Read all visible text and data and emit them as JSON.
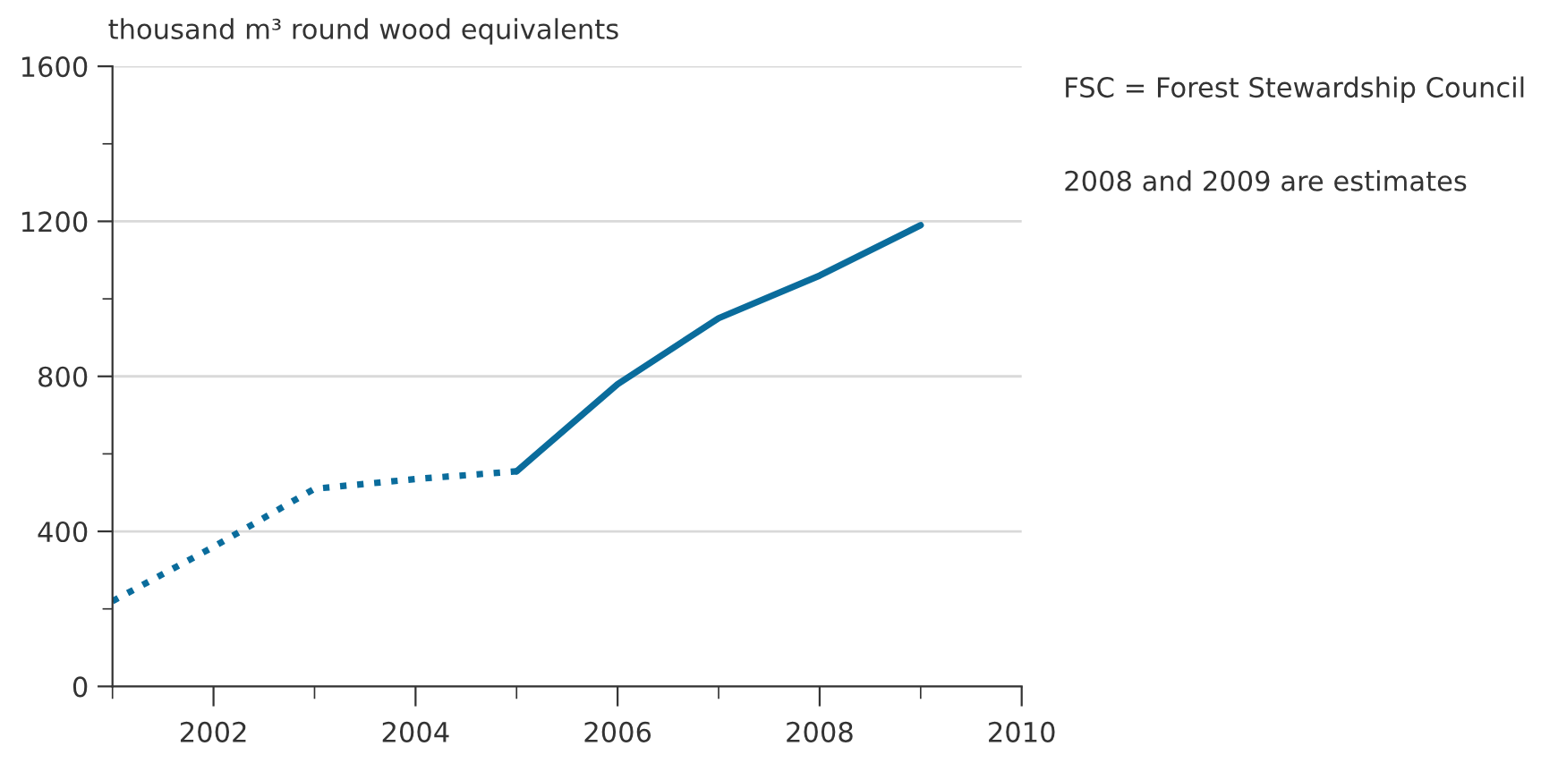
{
  "chart_data": {
    "type": "line",
    "ylabel": "thousand m³ round wood equivalents",
    "series": [
      {
        "color": "#0a6c9c",
        "line_style": "dotted",
        "x": [
          2001,
          2002,
          2003,
          2004,
          2005
        ],
        "values": [
          220,
          360,
          510,
          535,
          555
        ]
      },
      {
        "color": "#0a6c9c",
        "line_style": "solid",
        "x": [
          2005,
          2006,
          2007,
          2008,
          2009
        ],
        "values": [
          555,
          780,
          950,
          1060,
          1190
        ]
      }
    ],
    "xlim": [
      2001,
      2010
    ],
    "xticks": [
      {
        "value": 2001,
        "label": null
      },
      2002,
      {
        "value": 2003,
        "label": null
      },
      2004,
      {
        "value": 2005,
        "label": null
      },
      2006,
      {
        "value": 2007,
        "label": null
      },
      2008,
      {
        "value": 2009,
        "label": null
      },
      2010
    ],
    "ylim": [
      0,
      1600
    ],
    "yticks": [
      0,
      {
        "value": 200,
        "label": null
      },
      400,
      {
        "value": 600,
        "label": null
      },
      800,
      {
        "value": 1000,
        "label": null
      },
      1200,
      {
        "value": 1400,
        "label": null
      },
      1600
    ],
    "grid": "y",
    "marker": "none",
    "annotations": [
      "FSC = Forest Stewardship Council",
      "2008 and 2009 are estimates"
    ]
  }
}
